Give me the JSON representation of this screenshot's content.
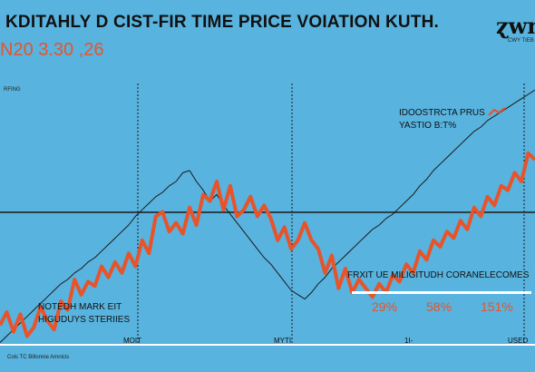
{
  "header": {
    "title": "KDITAHLY D CIST-FIR TIME PRICE VOIATION KUTH.",
    "subtitle": "N20 3.30 ,26",
    "logo": "ɀwn",
    "logo_sub": "CWY TIEB",
    "tiny_label": "RFING"
  },
  "legend": {
    "line1": "IDOOSTRCTA PRUS",
    "line2": "YASTIO B:T%",
    "accent_color": "#e8532a"
  },
  "note": {
    "line1": "NOTEDH MARK EIT",
    "line2": "HIGUDUYS STERIIES"
  },
  "fx_panel": {
    "title": "FRXIT UE MILIGITUDH CORANELECOMES",
    "values": [
      "29%",
      "58%",
      "151%"
    ]
  },
  "axis_tags": {
    "a": "MOIT",
    "b": "MYTI",
    "c": "1I-",
    "d": "USED"
  },
  "footer": "Cols TC Billonnie Amnicis",
  "colors": {
    "background": "#58b3de",
    "series_main": "#e8532a",
    "series_ref": "#1a1a1a"
  },
  "chart_data": {
    "type": "line",
    "title": "KDITAHLY D CIST-FIR TIME PRICE VOIATION KUTH.",
    "xlabel": "",
    "ylabel": "",
    "grid": false,
    "legend_position": "top-right",
    "x": [
      0,
      1,
      2,
      3,
      4,
      5,
      6,
      7,
      8,
      9,
      10,
      11,
      12,
      13,
      14,
      15,
      16,
      17,
      18,
      19,
      20,
      21,
      22,
      23,
      24,
      25,
      26,
      27,
      28,
      29,
      30,
      31,
      32,
      33,
      34,
      35,
      36,
      37,
      38,
      39,
      40,
      41,
      42,
      43,
      44,
      45,
      46,
      47,
      48,
      49,
      50,
      51,
      52,
      53,
      54,
      55,
      56,
      57,
      58,
      59,
      60,
      61,
      62,
      63,
      64,
      65,
      66,
      67,
      68,
      69,
      70,
      71,
      72,
      73,
      74,
      75,
      76,
      77,
      78,
      79
    ],
    "series": [
      {
        "values": [
          18,
          30,
          12,
          28,
          8,
          16,
          35,
          22,
          14,
          40,
          32,
          60,
          46,
          58,
          54,
          72,
          62,
          76,
          66,
          84,
          72,
          96,
          84,
          118,
          122,
          104,
          112,
          102,
          126,
          110,
          138,
          132,
          150,
          124,
          146,
          118,
          124,
          136,
          118,
          128,
          116,
          96,
          108,
          88,
          96,
          112,
          96,
          88,
          66,
          82,
          52,
          70,
          48,
          60,
          52,
          44,
          56,
          48,
          64,
          58,
          74,
          66,
          86,
          78,
          96,
          90,
          104,
          98,
          114,
          106,
          126,
          118,
          136,
          128,
          146,
          142,
          158,
          150,
          176,
          170
        ]
      },
      {
        "values": [
          2,
          8,
          14,
          20,
          26,
          32,
          38,
          44,
          50,
          56,
          60,
          66,
          70,
          76,
          80,
          86,
          92,
          98,
          104,
          110,
          118,
          124,
          130,
          136,
          140,
          146,
          150,
          158,
          160,
          150,
          142,
          132,
          138,
          128,
          120,
          112,
          104,
          96,
          88,
          80,
          74,
          66,
          58,
          50,
          46,
          42,
          48,
          56,
          62,
          70,
          76,
          82,
          88,
          94,
          100,
          106,
          110,
          116,
          120,
          126,
          132,
          138,
          146,
          152,
          160,
          166,
          172,
          178,
          184,
          190,
          196,
          200,
          206,
          210,
          214,
          218,
          222,
          226,
          230,
          234
        ]
      }
    ],
    "ylim": [
      0,
      240
    ]
  }
}
